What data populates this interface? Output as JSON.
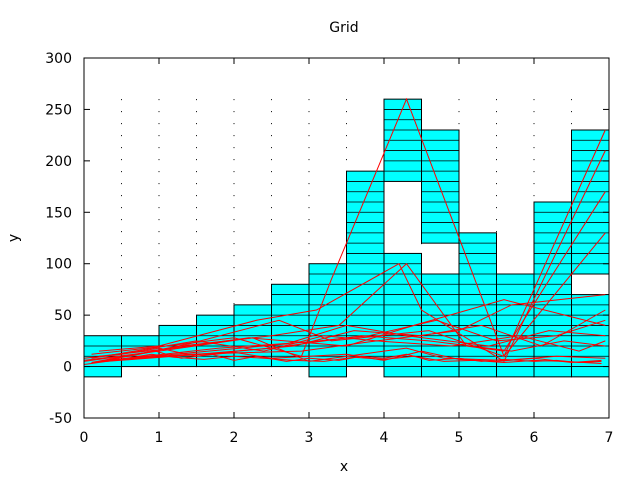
{
  "chart_data": {
    "type": "bar",
    "title": "Grid",
    "xlabel": "x",
    "ylabel": "y",
    "xlim": [
      0,
      7
    ],
    "ylim": [
      -50,
      300
    ],
    "x_ticks": [
      "0",
      "1",
      "2",
      "3",
      "4",
      "5",
      "6",
      "7"
    ],
    "y_ticks": [
      "-50",
      "0",
      "50",
      "100",
      "150",
      "200",
      "250",
      "300"
    ],
    "grid": "dotted",
    "colors": {
      "bars": "#00ffff",
      "lines": "#ff0000",
      "grid": "#000000"
    },
    "bins": [
      {
        "x0": 0.0,
        "x1": 0.5,
        "bottom": -10,
        "top": 30,
        "gap": null
      },
      {
        "x0": 0.5,
        "x1": 1.0,
        "bottom": 0,
        "top": 30,
        "gap": null
      },
      {
        "x0": 1.0,
        "x1": 1.5,
        "bottom": 0,
        "top": 40,
        "gap": null
      },
      {
        "x0": 1.5,
        "x1": 2.0,
        "bottom": 0,
        "top": 50,
        "gap": null
      },
      {
        "x0": 2.0,
        "x1": 2.5,
        "bottom": 0,
        "top": 60,
        "gap": null
      },
      {
        "x0": 2.5,
        "x1": 3.0,
        "bottom": 0,
        "top": 80,
        "gap": null
      },
      {
        "x0": 3.0,
        "x1": 3.5,
        "bottom": -10,
        "top": 100,
        "gap": null
      },
      {
        "x0": 3.5,
        "x1": 4.0,
        "bottom": 0,
        "top": 190,
        "gap": null
      },
      {
        "x0": 4.0,
        "x1": 4.5,
        "bottom": -10,
        "top": 260,
        "gap": [
          110,
          180
        ]
      },
      {
        "x0": 4.5,
        "x1": 5.0,
        "bottom": -10,
        "top": 230,
        "gap": [
          90,
          120
        ]
      },
      {
        "x0": 5.0,
        "x1": 5.5,
        "bottom": -10,
        "top": 130,
        "gap": null
      },
      {
        "x0": 5.5,
        "x1": 6.0,
        "bottom": -10,
        "top": 90,
        "gap": null
      },
      {
        "x0": 6.0,
        "x1": 6.5,
        "bottom": -10,
        "top": 160,
        "gap": null
      },
      {
        "x0": 6.5,
        "x1": 7.0,
        "bottom": -10,
        "top": 230,
        "gap": [
          70,
          90
        ]
      }
    ],
    "band_step": 10,
    "line_series": [
      {
        "x": [
          0,
          0.3,
          0.6,
          0.95,
          1.3,
          1.7,
          2.0,
          2.3,
          2.7,
          3.0,
          3.4,
          3.7,
          4.0,
          4.3,
          4.6,
          5.0,
          5.3,
          5.6,
          6.0,
          6.3,
          6.6,
          6.9
        ],
        "y": [
          5,
          8,
          10,
          15,
          8,
          12,
          6,
          10,
          5,
          8,
          6,
          10,
          8,
          12,
          6,
          8,
          5,
          7,
          5,
          6,
          4,
          5
        ]
      },
      {
        "x": [
          0,
          0.4,
          0.9,
          1.2,
          1.6,
          2.0,
          2.4,
          2.8,
          3.2,
          3.6,
          4.0,
          4.4,
          4.8,
          5.2,
          5.6,
          6.0,
          6.4,
          6.9
        ],
        "y": [
          2,
          6,
          12,
          9,
          7,
          10,
          8,
          6,
          5,
          9,
          7,
          10,
          5,
          6,
          4,
          6,
          5,
          3
        ]
      },
      {
        "x": [
          0,
          0.5,
          1.0,
          1.5,
          2.0,
          2.5,
          3.0,
          3.5,
          4.0,
          4.5,
          5.0,
          5.5,
          6.0,
          6.5,
          6.9
        ],
        "y": [
          8,
          12,
          18,
          10,
          14,
          8,
          10,
          12,
          6,
          15,
          7,
          5,
          8,
          4,
          6
        ]
      },
      {
        "x": [
          0,
          1.0,
          2.25,
          3.0,
          3.7,
          4.3,
          4.8,
          5.6,
          6.3,
          6.95
        ],
        "y": [
          6,
          15,
          28,
          5,
          12,
          18,
          8,
          6,
          10,
          8
        ]
      },
      {
        "x": [
          0.1,
          1.1,
          2.0,
          2.9,
          3.3,
          4.3,
          5.6,
          6.95
        ],
        "y": [
          12,
          20,
          28,
          10,
          85,
          260,
          10,
          230
        ]
      },
      {
        "x": [
          0.2,
          1.0,
          2.3,
          3.1,
          4.2,
          4.5,
          5.6,
          6.95
        ],
        "y": [
          15,
          20,
          45,
          55,
          100,
          55,
          5,
          210
        ]
      },
      {
        "x": [
          0.1,
          1.3,
          2.5,
          3.4,
          4.3,
          5.1,
          5.6,
          6.95
        ],
        "y": [
          4,
          20,
          30,
          40,
          100,
          20,
          15,
          170
        ]
      },
      {
        "x": [
          0.3,
          1.4,
          2.6,
          3.3,
          4.6,
          5.6,
          6.95
        ],
        "y": [
          6,
          22,
          45,
          25,
          35,
          10,
          130
        ]
      },
      {
        "x": [
          0.2,
          1.2,
          2.2,
          3.5,
          4.4,
          5.6,
          6.95
        ],
        "y": [
          10,
          18,
          28,
          20,
          40,
          65,
          40
        ]
      },
      {
        "x": [
          0.1,
          1.5,
          2.4,
          3.2,
          3.9,
          5.0,
          5.7,
          6.95
        ],
        "y": [
          8,
          25,
          15,
          30,
          25,
          35,
          60,
          70
        ]
      },
      {
        "x": [
          0.4,
          1.6,
          2.8,
          3.6,
          4.5,
          5.3,
          6.1,
          6.95
        ],
        "y": [
          7,
          12,
          20,
          35,
          30,
          40,
          20,
          55
        ]
      },
      {
        "x": [
          0.2,
          1.8,
          3.0,
          3.8,
          4.7,
          5.5,
          6.3,
          6.95
        ],
        "y": [
          5,
          18,
          24,
          30,
          45,
          25,
          30,
          45
        ]
      },
      {
        "x": [
          0.3,
          1.5,
          2.7,
          3.5,
          4.3,
          5.4,
          6.2,
          6.95
        ],
        "y": [
          6,
          14,
          22,
          40,
          30,
          20,
          35,
          30
        ]
      },
      {
        "x": [
          0.1,
          1.2,
          2.5,
          3.7,
          4.6,
          5.7,
          6.4,
          6.95
        ],
        "y": [
          4,
          10,
          18,
          30,
          25,
          15,
          25,
          20
        ]
      },
      {
        "x": [
          0.2,
          1.4,
          2.9,
          3.9,
          4.9,
          5.8,
          6.6,
          6.95
        ],
        "y": [
          5,
          12,
          15,
          25,
          20,
          30,
          15,
          25
        ]
      }
    ]
  }
}
